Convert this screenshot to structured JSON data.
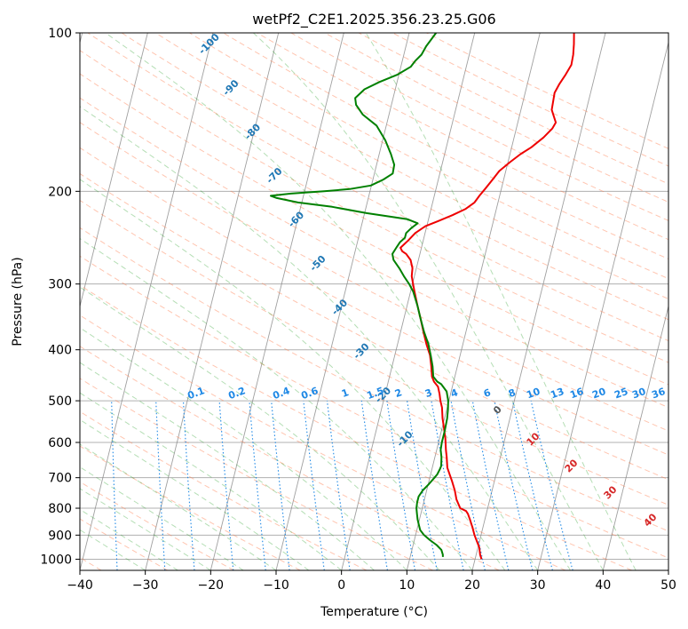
{
  "chart_data": {
    "type": "line",
    "title": "wetPf2_C2E1.2025.356.23.25.G06",
    "xlabel": "Temperature (°C)",
    "ylabel": "Pressure (hPa)",
    "xlim": [
      -40,
      50
    ],
    "ylim": [
      1050,
      100
    ],
    "y_scale": "log",
    "grid": true,
    "x_ticks": [
      -40,
      -30,
      -20,
      -10,
      0,
      10,
      20,
      30,
      40,
      50
    ],
    "y_ticks": [
      100,
      200,
      300,
      400,
      500,
      600,
      700,
      800,
      900,
      1000
    ],
    "dry_adiabat_labels": [
      "-100",
      "-90",
      "-80",
      "-70",
      "-60",
      "-50",
      "-40",
      "-30",
      "-20",
      "-10"
    ],
    "mixing_ratio_labels": [
      "0.1",
      "0.2",
      "0.4",
      "0.6",
      "1",
      "1.5",
      "2",
      "3",
      "4",
      "6",
      "8",
      "10",
      "13",
      "16",
      "20",
      "25",
      "30",
      "36"
    ],
    "moist_adiabat_labels": [
      "0",
      "10",
      "20",
      "30",
      "40"
    ],
    "colors": {
      "temperature": "#ee0000",
      "dewpoint": "#008000",
      "dry_adiabat": "#ff7f50",
      "moist_adiabat": "#2ca02c",
      "mixing_ratio": "#1e88e5",
      "dry_label": "#1f77b4",
      "moist_label": "#d62728",
      "isotherm": "#888888"
    },
    "series": [
      {
        "points": [
          [
            21,
            1000
          ],
          [
            20.8,
            990
          ],
          [
            20.6,
            980
          ],
          [
            20.2,
            950
          ],
          [
            19.5,
            920
          ],
          [
            19,
            900
          ],
          [
            18.4,
            870
          ],
          [
            17.7,
            840
          ],
          [
            17.2,
            820
          ],
          [
            16.8,
            810
          ],
          [
            15.8,
            800
          ],
          [
            14.9,
            770
          ],
          [
            14.3,
            740
          ],
          [
            13.5,
            710
          ],
          [
            12.9,
            690
          ],
          [
            12.3,
            670
          ],
          [
            11.8,
            640
          ],
          [
            11.4,
            620
          ],
          [
            10.9,
            590
          ],
          [
            10.2,
            560
          ],
          [
            9.7,
            540
          ],
          [
            9.2,
            515
          ],
          [
            8.7,
            500
          ],
          [
            8.3,
            485
          ],
          [
            7.8,
            470
          ],
          [
            7.0,
            460
          ],
          [
            6.5,
            450
          ],
          [
            6.0,
            430
          ],
          [
            5.4,
            410
          ],
          [
            4.4,
            390
          ],
          [
            3.5,
            370
          ],
          [
            2.6,
            350
          ],
          [
            1.6,
            330
          ],
          [
            0.6,
            310
          ],
          [
            0.1,
            300
          ],
          [
            -0.4,
            290
          ],
          [
            -0.6,
            280
          ],
          [
            -1.2,
            270
          ],
          [
            -2.1,
            263
          ],
          [
            -2.8,
            260
          ],
          [
            -3.2,
            256
          ],
          [
            -2.3,
            248
          ],
          [
            -1.5,
            240
          ],
          [
            -0.2,
            233
          ],
          [
            1.5,
            228
          ],
          [
            3.5,
            222
          ],
          [
            5.3,
            216
          ],
          [
            6.4,
            210
          ],
          [
            6.9,
            204
          ],
          [
            7.5,
            198
          ],
          [
            8.3,
            190
          ],
          [
            9.0,
            183
          ],
          [
            10.3,
            176
          ],
          [
            11.6,
            170
          ],
          [
            13.0,
            165
          ],
          [
            14.5,
            158
          ],
          [
            15.5,
            152
          ],
          [
            15.8,
            148
          ],
          [
            14.7,
            140
          ],
          [
            14.6,
            135
          ],
          [
            14.5,
            130
          ],
          [
            14.9,
            125
          ],
          [
            15.5,
            120
          ],
          [
            16.0,
            115
          ],
          [
            15.9,
            110
          ],
          [
            15.6,
            105
          ],
          [
            15.2,
            100
          ]
        ]
      },
      {
        "points": [
          [
            15,
            990
          ],
          [
            14.9,
            980
          ],
          [
            14.5,
            960
          ],
          [
            13.6,
            940
          ],
          [
            12.4,
            920
          ],
          [
            11.3,
            900
          ],
          [
            10.5,
            880
          ],
          [
            10.1,
            860
          ],
          [
            9.7,
            840
          ],
          [
            9.4,
            820
          ],
          [
            9.1,
            800
          ],
          [
            9.0,
            780
          ],
          [
            9.0,
            760
          ],
          [
            9.4,
            740
          ],
          [
            10.1,
            720
          ],
          [
            10.7,
            700
          ],
          [
            11.0,
            690
          ],
          [
            11.2,
            675
          ],
          [
            11.3,
            665
          ],
          [
            11.0,
            640
          ],
          [
            10.6,
            620
          ],
          [
            10.5,
            600
          ],
          [
            10.5,
            570
          ],
          [
            10.4,
            540
          ],
          [
            10.2,
            520
          ],
          [
            9.9,
            500
          ],
          [
            9.3,
            480
          ],
          [
            8.2,
            465
          ],
          [
            7.5,
            460
          ],
          [
            6.7,
            450
          ],
          [
            6.2,
            430
          ],
          [
            5.5,
            410
          ],
          [
            4.7,
            390
          ],
          [
            3.6,
            370
          ],
          [
            2.6,
            350
          ],
          [
            1.6,
            330
          ],
          [
            0.4,
            310
          ],
          [
            -0.5,
            300
          ],
          [
            -1.6,
            290
          ],
          [
            -2.6,
            280
          ],
          [
            -3.8,
            270
          ],
          [
            -4.2,
            263
          ],
          [
            -3.8,
            255
          ],
          [
            -3.5,
            250
          ],
          [
            -2.9,
            245
          ],
          [
            -2.9,
            240
          ],
          [
            -2.3,
            235
          ],
          [
            -1.5,
            230
          ],
          [
            -3.2,
            226
          ],
          [
            -9.7,
            220
          ],
          [
            -15.2,
            214
          ],
          [
            -20.6,
            210
          ],
          [
            -24,
            206
          ],
          [
            -25,
            204
          ],
          [
            -22,
            202
          ],
          [
            -17,
            200
          ],
          [
            -13.2,
            198
          ],
          [
            -10.1,
            195
          ],
          [
            -8.4,
            190
          ],
          [
            -7.2,
            185
          ],
          [
            -7.3,
            178
          ],
          [
            -8.2,
            170
          ],
          [
            -9.6,
            160
          ],
          [
            -11.5,
            150
          ],
          [
            -14.0,
            143
          ],
          [
            -15.4,
            137
          ],
          [
            -15.8,
            133
          ],
          [
            -14.7,
            128
          ],
          [
            -12.7,
            124
          ],
          [
            -10.2,
            120
          ],
          [
            -8.5,
            116
          ],
          [
            -8.0,
            113
          ],
          [
            -7.3,
            110
          ],
          [
            -6.9,
            106
          ],
          [
            -6.4,
            103
          ],
          [
            -5.9,
            100
          ]
        ]
      }
    ]
  }
}
